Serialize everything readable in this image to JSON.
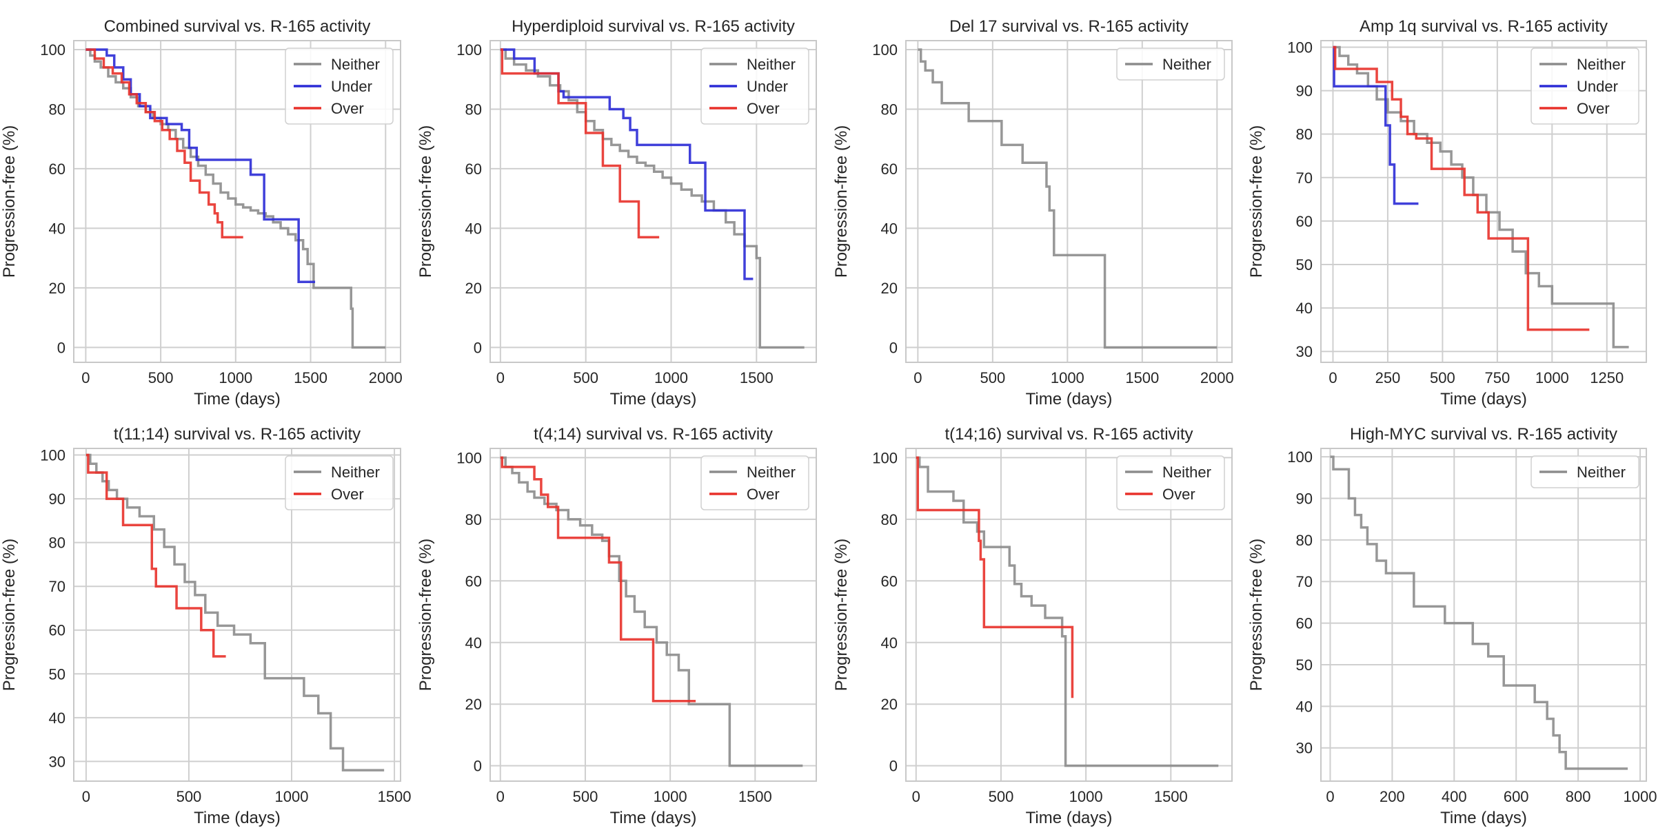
{
  "chart_data": [
    {
      "type": "line",
      "step": true,
      "title": "Combined survival vs. R-165 activity",
      "xlabel": "Time (days)",
      "ylabel": "Progression-free (%)",
      "xlim": [
        -80,
        2100
      ],
      "ylim": [
        -5,
        103
      ],
      "xticks": [
        0,
        500,
        1000,
        1500,
        2000
      ],
      "yticks": [
        0,
        20,
        40,
        60,
        80,
        100
      ],
      "grid": true,
      "legend": "top-right",
      "series": [
        {
          "name": "Neither",
          "color": "#8c8c8c",
          "x": [
            0,
            30,
            60,
            100,
            150,
            200,
            250,
            300,
            350,
            400,
            450,
            500,
            550,
            600,
            650,
            700,
            750,
            800,
            850,
            900,
            950,
            1000,
            1050,
            1100,
            1150,
            1200,
            1250,
            1300,
            1350,
            1400,
            1450,
            1480,
            1520,
            1770,
            1780,
            2000
          ],
          "y": [
            100,
            98,
            96,
            94,
            91,
            89,
            87,
            84,
            81,
            79,
            77,
            75,
            73,
            70,
            67,
            64,
            61,
            58,
            55,
            52,
            50,
            48,
            47,
            46,
            45,
            44,
            42,
            40,
            38,
            36,
            33,
            28,
            20,
            13,
            0,
            0
          ]
        },
        {
          "name": "Under",
          "color": "#2b2bd6",
          "x": [
            0,
            140,
            190,
            250,
            300,
            360,
            430,
            540,
            640,
            690,
            740,
            1100,
            1190,
            1420,
            1530
          ],
          "y": [
            100,
            98,
            94,
            90,
            85,
            81,
            77,
            75,
            73,
            67,
            63,
            58,
            43,
            22,
            22
          ]
        },
        {
          "name": "Over",
          "color": "#e8312a",
          "x": [
            0,
            60,
            120,
            180,
            240,
            290,
            340,
            400,
            460,
            510,
            560,
            610,
            660,
            700,
            760,
            820,
            860,
            880,
            910,
            1050
          ],
          "y": [
            100,
            97,
            94,
            92,
            89,
            85,
            82,
            79,
            76,
            73,
            70,
            66,
            62,
            56,
            52,
            48,
            45,
            42,
            37,
            37
          ]
        }
      ]
    },
    {
      "type": "line",
      "step": true,
      "title": "Hyperdiploid survival vs. R-165 activity",
      "xlabel": "Time (days)",
      "ylabel": "Progression-free (%)",
      "xlim": [
        -60,
        1850
      ],
      "ylim": [
        -5,
        103
      ],
      "xticks": [
        0,
        500,
        1000,
        1500
      ],
      "yticks": [
        0,
        20,
        40,
        60,
        80,
        100
      ],
      "grid": true,
      "legend": "top-right",
      "series": [
        {
          "name": "Neither",
          "color": "#8c8c8c",
          "x": [
            0,
            30,
            80,
            150,
            220,
            290,
            350,
            400,
            450,
            500,
            550,
            600,
            650,
            700,
            750,
            800,
            850,
            900,
            950,
            1000,
            1060,
            1120,
            1180,
            1250,
            1320,
            1370,
            1430,
            1500,
            1520,
            1780
          ],
          "y": [
            100,
            97,
            95,
            93,
            91,
            88,
            86,
            83,
            79,
            76,
            73,
            70,
            68,
            66,
            64,
            62,
            61,
            59,
            57,
            55,
            53,
            51,
            49,
            46,
            42,
            38,
            34,
            30,
            0,
            0
          ]
        },
        {
          "name": "Under",
          "color": "#2b2bd6",
          "x": [
            0,
            80,
            200,
            340,
            370,
            640,
            720,
            760,
            800,
            1110,
            1200,
            1430,
            1480
          ],
          "y": [
            100,
            97,
            92,
            86,
            84,
            80,
            77,
            73,
            68,
            62,
            46,
            23,
            23
          ]
        },
        {
          "name": "Over",
          "color": "#e8312a",
          "x": [
            0,
            10,
            340,
            500,
            600,
            700,
            810,
            930
          ],
          "y": [
            100,
            92,
            82,
            72,
            61,
            49,
            37,
            37
          ]
        }
      ]
    },
    {
      "type": "line",
      "step": true,
      "title": "Del 17 survival vs. R-165 activity",
      "xlabel": "Time (days)",
      "ylabel": "Progression-free (%)",
      "xlim": [
        -80,
        2100
      ],
      "ylim": [
        -5,
        103
      ],
      "xticks": [
        0,
        500,
        1000,
        1500,
        2000
      ],
      "yticks": [
        0,
        20,
        40,
        60,
        80,
        100
      ],
      "grid": true,
      "legend": "top-right",
      "series": [
        {
          "name": "Neither",
          "color": "#8c8c8c",
          "x": [
            0,
            20,
            50,
            100,
            160,
            340,
            560,
            700,
            860,
            880,
            910,
            1250,
            2000
          ],
          "y": [
            100,
            96,
            93,
            89,
            82,
            76,
            68,
            62,
            54,
            46,
            31,
            0,
            0
          ]
        }
      ]
    },
    {
      "type": "line",
      "step": true,
      "title": "Amp 1q survival vs. R-165 activity",
      "xlabel": "Time (days)",
      "ylabel": "Progression-free (%)",
      "xlim": [
        -55,
        1430
      ],
      "ylim": [
        27.5,
        101.5
      ],
      "xticks": [
        0,
        250,
        500,
        750,
        1000,
        1250
      ],
      "yticks": [
        30,
        40,
        50,
        60,
        70,
        80,
        90,
        100
      ],
      "grid": true,
      "legend": "top-right",
      "series": [
        {
          "name": "Neither",
          "color": "#8c8c8c",
          "x": [
            0,
            30,
            70,
            110,
            160,
            200,
            250,
            310,
            370,
            430,
            490,
            540,
            590,
            640,
            700,
            760,
            820,
            880,
            940,
            1000,
            1060,
            1260,
            1280,
            1350
          ],
          "y": [
            100,
            98,
            96,
            94,
            91,
            88,
            85,
            83,
            80,
            78,
            76,
            73,
            70,
            66,
            62,
            58,
            53,
            48,
            45,
            41,
            41,
            41,
            31,
            31
          ]
        },
        {
          "name": "Under",
          "color": "#2b2bd6",
          "x": [
            0,
            5,
            240,
            260,
            280,
            390
          ],
          "y": [
            100,
            91,
            82,
            73,
            64,
            64
          ]
        },
        {
          "name": "Over",
          "color": "#e8312a",
          "x": [
            0,
            10,
            200,
            270,
            310,
            340,
            380,
            450,
            600,
            660,
            710,
            890,
            1170
          ],
          "y": [
            100,
            95,
            92,
            88,
            84,
            80,
            79,
            72,
            66,
            62,
            56,
            35,
            35
          ]
        }
      ]
    },
    {
      "type": "line",
      "step": true,
      "title": "t(11;14) survival vs. R-165 activity",
      "xlabel": "Time (days)",
      "ylabel": "Progression-free (%)",
      "xlim": [
        -60,
        1530
      ],
      "ylim": [
        25.5,
        101.5
      ],
      "xticks": [
        0,
        500,
        1000,
        1500
      ],
      "yticks": [
        30,
        40,
        50,
        60,
        70,
        80,
        90,
        100
      ],
      "grid": true,
      "legend": "top-right",
      "series": [
        {
          "name": "Neither",
          "color": "#8c8c8c",
          "x": [
            0,
            20,
            50,
            80,
            110,
            150,
            200,
            260,
            330,
            380,
            430,
            480,
            530,
            580,
            640,
            720,
            800,
            870,
            1060,
            1130,
            1190,
            1250,
            1450
          ],
          "y": [
            100,
            98,
            96,
            94,
            92,
            90,
            88,
            86,
            83,
            79,
            75,
            71,
            68,
            64,
            61,
            59,
            57,
            49,
            45,
            41,
            33,
            28,
            28
          ]
        },
        {
          "name": "Over",
          "color": "#e8312a",
          "x": [
            0,
            10,
            100,
            180,
            320,
            340,
            440,
            560,
            620,
            680
          ],
          "y": [
            100,
            96,
            90,
            84,
            74,
            70,
            65,
            60,
            54,
            54
          ]
        }
      ]
    },
    {
      "type": "line",
      "step": true,
      "title": "t(4;14) survival vs. R-165 activity",
      "xlabel": "Time (days)",
      "ylabel": "Progression-free (%)",
      "xlim": [
        -60,
        1860
      ],
      "ylim": [
        -5,
        103
      ],
      "xticks": [
        0,
        500,
        1000,
        1500
      ],
      "yticks": [
        0,
        20,
        40,
        60,
        80,
        100
      ],
      "grid": true,
      "legend": "top-right",
      "series": [
        {
          "name": "Neither",
          "color": "#8c8c8c",
          "x": [
            0,
            30,
            70,
            110,
            160,
            200,
            260,
            330,
            400,
            470,
            540,
            600,
            640,
            700,
            740,
            790,
            850,
            920,
            980,
            1050,
            1110,
            1350,
            1780
          ],
          "y": [
            100,
            97,
            95,
            92,
            89,
            87,
            85,
            83,
            80,
            78,
            75,
            73,
            68,
            60,
            55,
            50,
            45,
            40,
            36,
            31,
            20,
            0,
            0
          ]
        },
        {
          "name": "Over",
          "color": "#e8312a",
          "x": [
            0,
            10,
            200,
            240,
            280,
            340,
            600,
            640,
            710,
            860,
            900,
            1150
          ],
          "y": [
            100,
            97,
            93,
            88,
            84,
            74,
            74,
            66,
            41,
            41,
            21,
            21
          ]
        }
      ]
    },
    {
      "type": "line",
      "step": true,
      "title": "t(14;16) survival vs. R-165 activity",
      "xlabel": "Time (days)",
      "ylabel": "Progression-free (%)",
      "xlim": [
        -60,
        1860
      ],
      "ylim": [
        -5,
        103
      ],
      "xticks": [
        0,
        500,
        1000,
        1500
      ],
      "yticks": [
        0,
        20,
        40,
        60,
        80,
        100
      ],
      "grid": true,
      "legend": "top-right",
      "series": [
        {
          "name": "Neither",
          "color": "#8c8c8c",
          "x": [
            0,
            20,
            70,
            220,
            280,
            360,
            400,
            550,
            580,
            620,
            680,
            760,
            860,
            880,
            1780
          ],
          "y": [
            100,
            97,
            89,
            86,
            79,
            76,
            71,
            65,
            59,
            55,
            52,
            48,
            42,
            0,
            0
          ]
        },
        {
          "name": "Over",
          "color": "#e8312a",
          "x": [
            0,
            10,
            370,
            380,
            400,
            920
          ],
          "y": [
            100,
            83,
            73,
            67,
            45,
            22
          ]
        }
      ]
    },
    {
      "type": "line",
      "step": true,
      "title": "High-MYC survival vs. R-165 activity",
      "xlabel": "Time (days)",
      "ylabel": "Progression-free (%)",
      "xlim": [
        -30,
        1020
      ],
      "ylim": [
        22,
        102
      ],
      "xticks": [
        0,
        200,
        400,
        600,
        800,
        1000
      ],
      "yticks": [
        30,
        40,
        50,
        60,
        70,
        80,
        90,
        100
      ],
      "grid": true,
      "legend": "top-right",
      "series": [
        {
          "name": "Neither",
          "color": "#8c8c8c",
          "x": [
            0,
            10,
            60,
            80,
            100,
            120,
            150,
            180,
            270,
            370,
            460,
            510,
            560,
            660,
            700,
            720,
            740,
            760,
            960
          ],
          "y": [
            100,
            97,
            90,
            86,
            83,
            79,
            75,
            72,
            64,
            60,
            55,
            52,
            45,
            41,
            37,
            33,
            29,
            25,
            25
          ]
        }
      ]
    }
  ]
}
